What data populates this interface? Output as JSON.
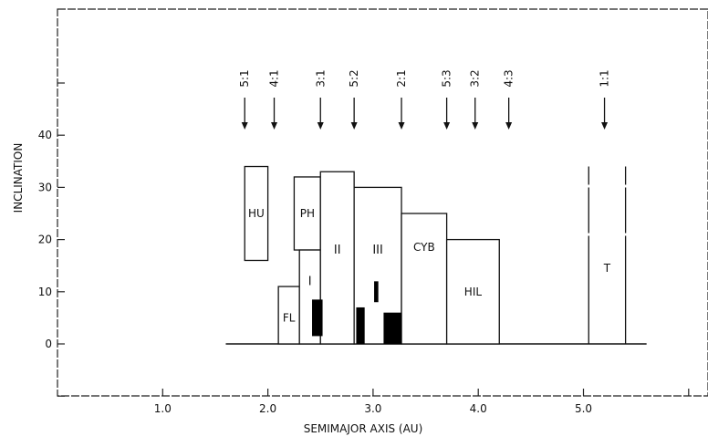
{
  "chart_data": {
    "type": "diagram",
    "xlabel": "SEMIMAJOR AXIS (AU)",
    "ylabel": "INCLINATION",
    "xlim": [
      0.0,
      6.0
    ],
    "ylim": [
      -10,
      65
    ],
    "x_ticks": [
      "1.0",
      "2.0",
      "3.0",
      "4.0",
      "5.0"
    ],
    "y_ticks": [
      "0",
      "10",
      "20",
      "30",
      "40"
    ],
    "resonances": [
      {
        "label": "5:1",
        "a": 1.78
      },
      {
        "label": "4:1",
        "a": 2.06
      },
      {
        "label": "3:1",
        "a": 2.5
      },
      {
        "label": "5:2",
        "a": 2.82
      },
      {
        "label": "2:1",
        "a": 3.27
      },
      {
        "label": "5:3",
        "a": 3.7
      },
      {
        "label": "3:2",
        "a": 3.97
      },
      {
        "label": "4:3",
        "a": 4.29
      },
      {
        "label": "1:1",
        "a": 5.2
      }
    ],
    "regions": [
      {
        "label": "HU",
        "a_min": 1.78,
        "a_max": 2.0,
        "i_min": 16,
        "i_max": 34
      },
      {
        "label": "FL",
        "a_min": 2.1,
        "a_max": 2.3,
        "i_min": 0,
        "i_max": 11
      },
      {
        "label": "PH",
        "a_min": 2.25,
        "a_max": 2.5,
        "i_min": 18,
        "i_max": 32
      },
      {
        "label": "I",
        "a_min": 2.3,
        "a_max": 2.5,
        "i_min": 0,
        "i_max": 18
      },
      {
        "label": "II",
        "a_min": 2.5,
        "a_max": 2.82,
        "i_min": 0,
        "i_max": 33
      },
      {
        "label": "III",
        "a_min": 2.82,
        "a_max": 3.27,
        "i_min": 0,
        "i_max": 30
      },
      {
        "label": "CYB",
        "a_min": 3.27,
        "a_max": 3.7,
        "i_min": 0,
        "i_max": 25
      },
      {
        "label": "HIL",
        "a_min": 3.7,
        "a_max": 4.2,
        "i_min": 0,
        "i_max": 20
      },
      {
        "label": "T",
        "a_min": 5.05,
        "a_max": 5.4,
        "i_min": 0,
        "i_max": 34
      }
    ],
    "families": [
      {
        "a_min": 2.42,
        "a_max": 2.52,
        "i_min": 1.5,
        "i_max": 8.5
      },
      {
        "a_min": 2.84,
        "a_max": 2.92,
        "i_min": 0,
        "i_max": 7
      },
      {
        "a_min": 3.01,
        "a_max": 3.05,
        "i_min": 8,
        "i_max": 12
      },
      {
        "a_min": 3.1,
        "a_max": 3.27,
        "i_min": 0,
        "i_max": 6
      }
    ],
    "baseline": {
      "a_min": 1.6,
      "a_max": 5.6
    }
  }
}
